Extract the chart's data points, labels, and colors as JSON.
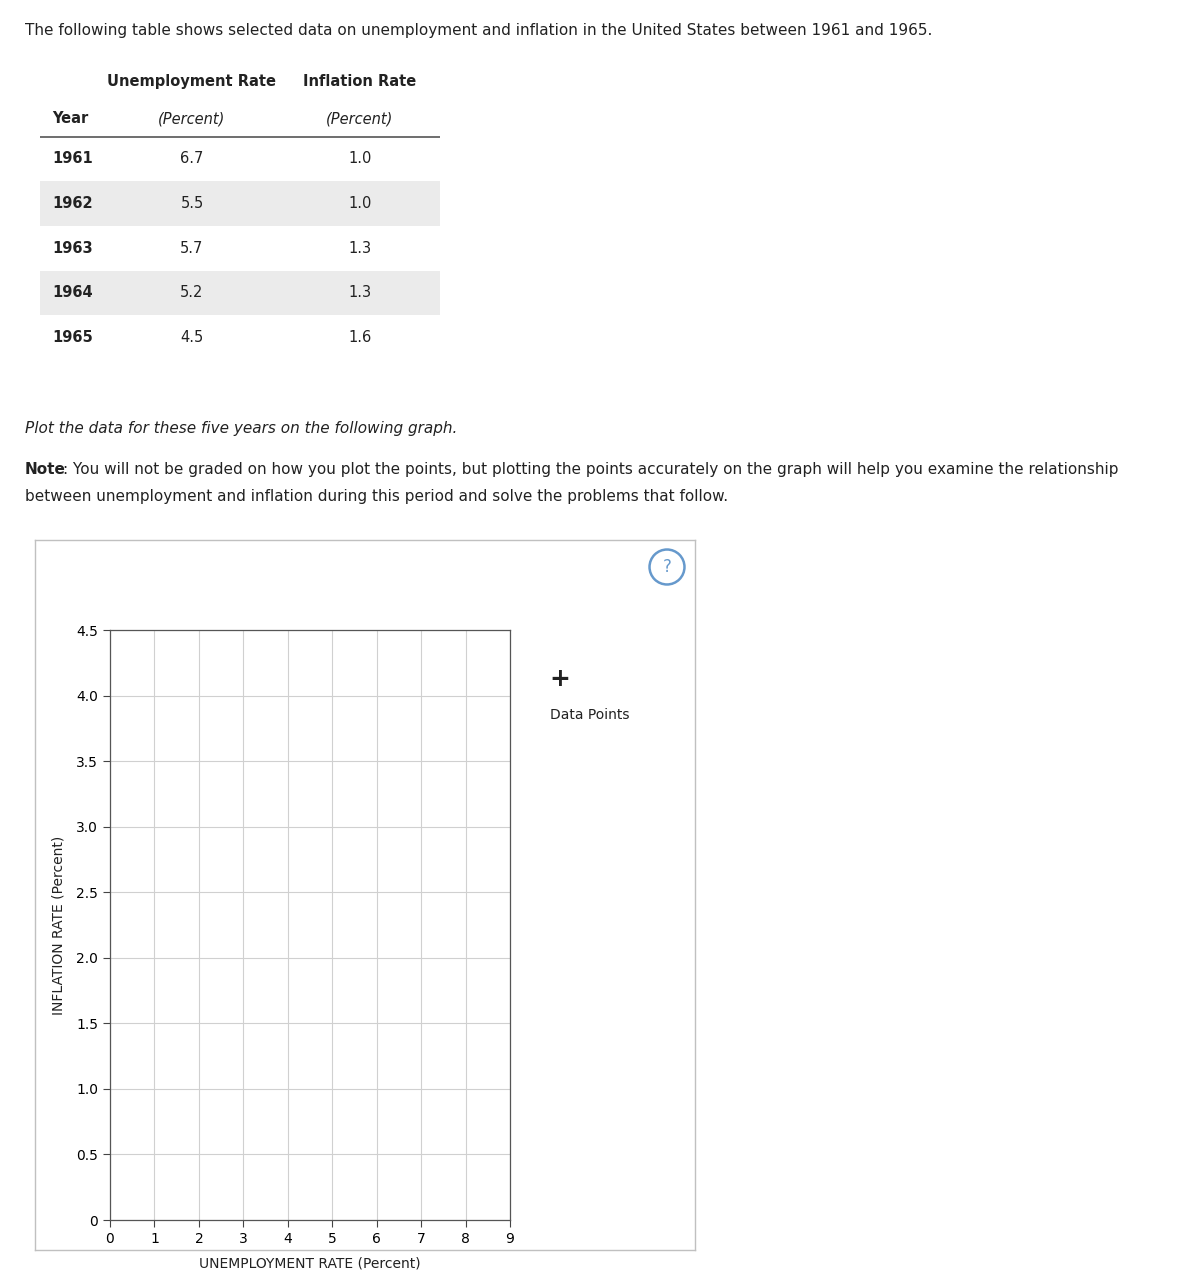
{
  "intro_text": "The following table shows selected data on unemployment and inflation in the United States between 1961 and 1965.",
  "table_header1": "Unemployment Rate",
  "table_header2": "Inflation Rate",
  "table_subheader1": "(Percent)",
  "table_subheader2": "(Percent)",
  "table_col0": "Year",
  "years": [
    "1961",
    "1962",
    "1963",
    "1964",
    "1965"
  ],
  "unemployment": [
    6.7,
    5.5,
    5.7,
    5.2,
    4.5
  ],
  "inflation": [
    1.0,
    1.0,
    1.3,
    1.3,
    1.6
  ],
  "italic_text": "Plot the data for these five years on the following graph.",
  "note_bold": "Note",
  "note_rest": ": You will not be graded on how you plot the points, but plotting the points accurately on the graph will help you examine the relationship",
  "note_line2": "between unemployment and inflation during this period and solve the problems that follow.",
  "xlabel": "UNEMPLOYMENT RATE (Percent)",
  "ylabel": "INFLATION RATE (Percent)",
  "xlim": [
    0,
    9
  ],
  "ylim": [
    0,
    4.5
  ],
  "xticks": [
    0,
    1,
    2,
    3,
    4,
    5,
    6,
    7,
    8,
    9
  ],
  "yticks": [
    0,
    0.5,
    1.0,
    1.5,
    2.0,
    2.5,
    3.0,
    3.5,
    4.0,
    4.5
  ],
  "legend_label": "Data Points",
  "table_stripe_color": "#ebebeb",
  "table_border_color": "#c8b97a",
  "bg_color": "#ffffff",
  "chart_bg": "#ffffff",
  "grid_color": "#d0d0d0",
  "text_color": "#222222",
  "outer_box_border": "#c0c0c0",
  "question_color": "#6699cc"
}
